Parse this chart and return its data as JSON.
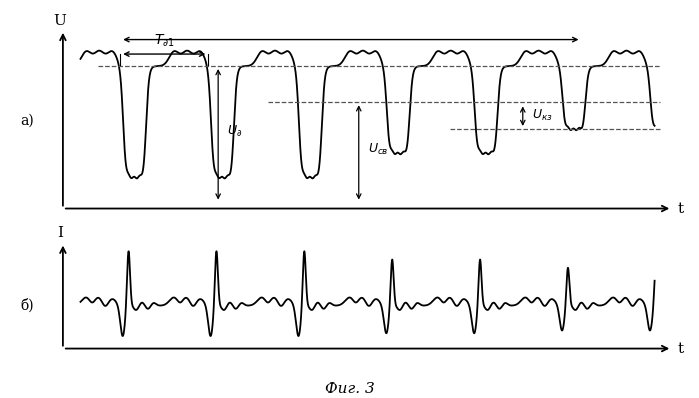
{
  "fig_title": "Фиг. 3",
  "label_a": "а)",
  "label_b": "б)",
  "ylabel_a": "U",
  "ylabel_b": "I",
  "xlabel": "t",
  "line_color": "#000000",
  "dashed_color": "#555555",
  "background": "#ffffff",
  "u_level": 0.6,
  "usv_level": 0.3,
  "ukz_level": 0.08
}
